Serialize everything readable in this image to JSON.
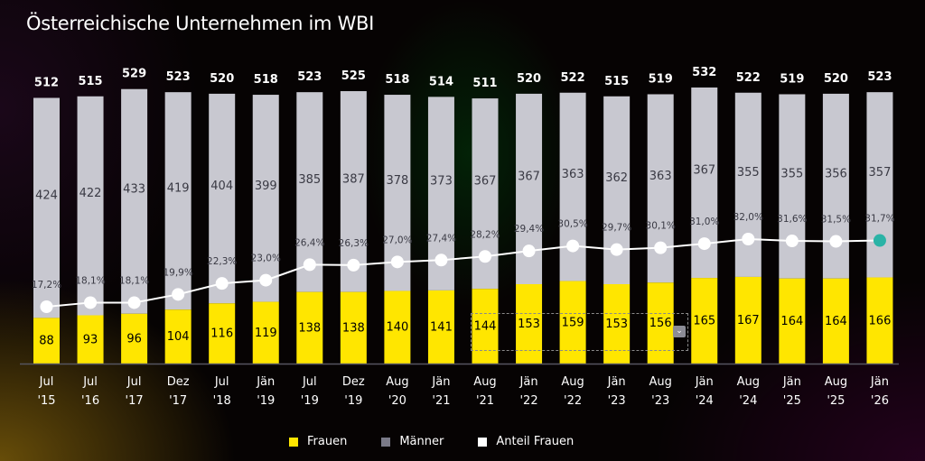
{
  "title": "Österreichische Unternehmen im WBI",
  "colors": {
    "frauen": "#ffe600",
    "maenner": "#c8c8d0",
    "line": "#ffffff",
    "highlight_point": "#2ab3a6",
    "total_label": "#ffffff",
    "inner_label": "#3a3a44",
    "frauen_label": "#000000"
  },
  "legend": [
    {
      "label": "Frauen",
      "color": "#ffe600"
    },
    {
      "label": "Männer",
      "color": "#7a7a88"
    },
    {
      "label": "Anteil Frauen",
      "color": "#ffffff"
    }
  ],
  "selection": {
    "dropdown_glyph": "⌄"
  },
  "chart_data": {
    "type": "bar",
    "stacked": true,
    "title": "Österreichische Unternehmen im WBI",
    "xlabel": "",
    "ylabel": "",
    "categories": [
      [
        "Jul",
        "'15"
      ],
      [
        "Jul",
        "'16"
      ],
      [
        "Jul",
        "'17"
      ],
      [
        "Dez",
        "'17"
      ],
      [
        "Jul",
        "'18"
      ],
      [
        "Jän",
        "'19"
      ],
      [
        "Jul",
        "'19"
      ],
      [
        "Dez",
        "'19"
      ],
      [
        "Aug",
        "'20"
      ],
      [
        "Jän",
        "'21"
      ],
      [
        "Aug",
        "'21"
      ],
      [
        "Jän",
        "'22"
      ],
      [
        "Aug",
        "'22"
      ],
      [
        "Jän",
        "'23"
      ],
      [
        "Aug",
        "'23"
      ],
      [
        "Jän",
        "'24"
      ],
      [
        "Aug",
        "'24"
      ],
      [
        "Jän",
        "'25"
      ],
      [
        "Aug",
        "'25"
      ],
      [
        "Jän",
        "'26"
      ]
    ],
    "series": [
      {
        "name": "Frauen",
        "type": "bar",
        "values": [
          88,
          93,
          96,
          104,
          116,
          119,
          138,
          138,
          140,
          141,
          144,
          153,
          159,
          153,
          156,
          165,
          167,
          164,
          164,
          166
        ]
      },
      {
        "name": "Männer",
        "type": "bar",
        "values": [
          424,
          422,
          433,
          419,
          404,
          399,
          385,
          387,
          378,
          373,
          367,
          367,
          363,
          362,
          363,
          367,
          355,
          355,
          356,
          357
        ]
      },
      {
        "name": "Anteil Frauen",
        "type": "line",
        "unit": "%",
        "values": [
          17.2,
          18.1,
          18.1,
          19.9,
          22.3,
          23.0,
          26.4,
          26.3,
          27.0,
          27.4,
          28.2,
          29.4,
          30.5,
          29.7,
          30.1,
          31.0,
          32.0,
          31.6,
          31.5,
          31.7
        ],
        "labels": [
          "17,2%",
          "18,1%",
          "18,1%",
          "19,9%",
          "22,3%",
          "23,0%",
          "26,4%",
          "26,3%",
          "27,0%",
          "27,4%",
          "28,2%",
          "29,4%",
          "30,5%",
          "29,7%",
          "30,1%",
          "31,0%",
          "32,0%",
          "31,6%",
          "31,5%",
          "31,7%"
        ]
      }
    ],
    "totals": [
      512,
      515,
      529,
      523,
      520,
      518,
      523,
      525,
      518,
      514,
      511,
      520,
      522,
      515,
      519,
      532,
      522,
      519,
      520,
      523
    ],
    "ylim": [
      0,
      532
    ],
    "line_ylim": [
      0,
      45
    ],
    "grid": false,
    "legend_position": "bottom"
  }
}
